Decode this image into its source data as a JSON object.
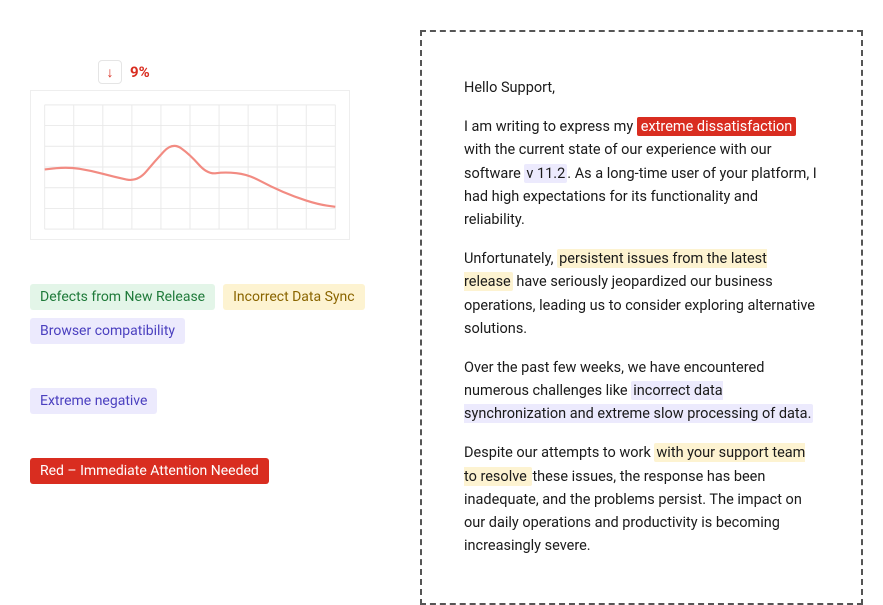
{
  "csat": {
    "arrow_glyph": "↓",
    "percent": "9%",
    "percent_color": "#d92d20"
  },
  "chart": {
    "type": "line",
    "xlim": [
      0,
      100
    ],
    "ylim": [
      0,
      100
    ],
    "grid_x_steps": 10,
    "grid_y_steps": 6,
    "background_color": "#ffffff",
    "grid_color": "#e9e9e9",
    "line_color": "#f28b82",
    "line_width": 2.2,
    "points": [
      [
        0,
        48
      ],
      [
        8,
        50
      ],
      [
        16,
        47
      ],
      [
        24,
        42
      ],
      [
        32,
        38
      ],
      [
        38,
        55
      ],
      [
        44,
        70
      ],
      [
        50,
        60
      ],
      [
        56,
        44
      ],
      [
        62,
        46
      ],
      [
        70,
        44
      ],
      [
        78,
        34
      ],
      [
        86,
        26
      ],
      [
        94,
        20
      ],
      [
        100,
        18
      ]
    ]
  },
  "topics": {
    "items": [
      {
        "label": "Defects from New Release",
        "style": "green"
      },
      {
        "label": "Incorrect Data Sync",
        "style": "yellow"
      },
      {
        "label": "Browser compatibility",
        "style": "lavender"
      }
    ]
  },
  "sentiment": {
    "items": [
      {
        "label": "Extreme negative",
        "style": "lavender"
      }
    ]
  },
  "priority": {
    "items": [
      {
        "label": "Red – Immediate Attention Needed",
        "style": "red"
      }
    ]
  },
  "ticket": {
    "greeting": "Hello Support,",
    "p1_a": "I am writing to express my ",
    "p1_hl1": "extreme dissatisfaction",
    "p1_b": " with the current state of our experience with our software ",
    "p1_hl2": " v 11.2",
    "p1_c": ". As a long-time user of your platform, I had high expectations for its functionality and reliability.",
    "p2_a": "Unfortunately, ",
    "p2_hl1": "persistent issues from the latest release",
    "p2_b": " have seriously jeopardized our business operations, leading us to consider exploring alternative solutions.",
    "p3_a": "Over the past few weeks, we have encountered numerous challenges like ",
    "p3_hl1": "incorrect data synchronization and extreme slow processing of data.",
    "p4_a": "Despite our attempts to work ",
    "p4_hl1": "with your support team to resolve ",
    "p4_b": "these issues, the response has been inadequate, and the problems persist. The impact on our daily operations and productivity is becoming increasingly severe."
  },
  "highlight_colors": {
    "red_bg": "#d92d20",
    "red_fg": "#ffffff",
    "lavender_bg": "#eceafd",
    "yellow_bg": "#fdf3d1"
  }
}
